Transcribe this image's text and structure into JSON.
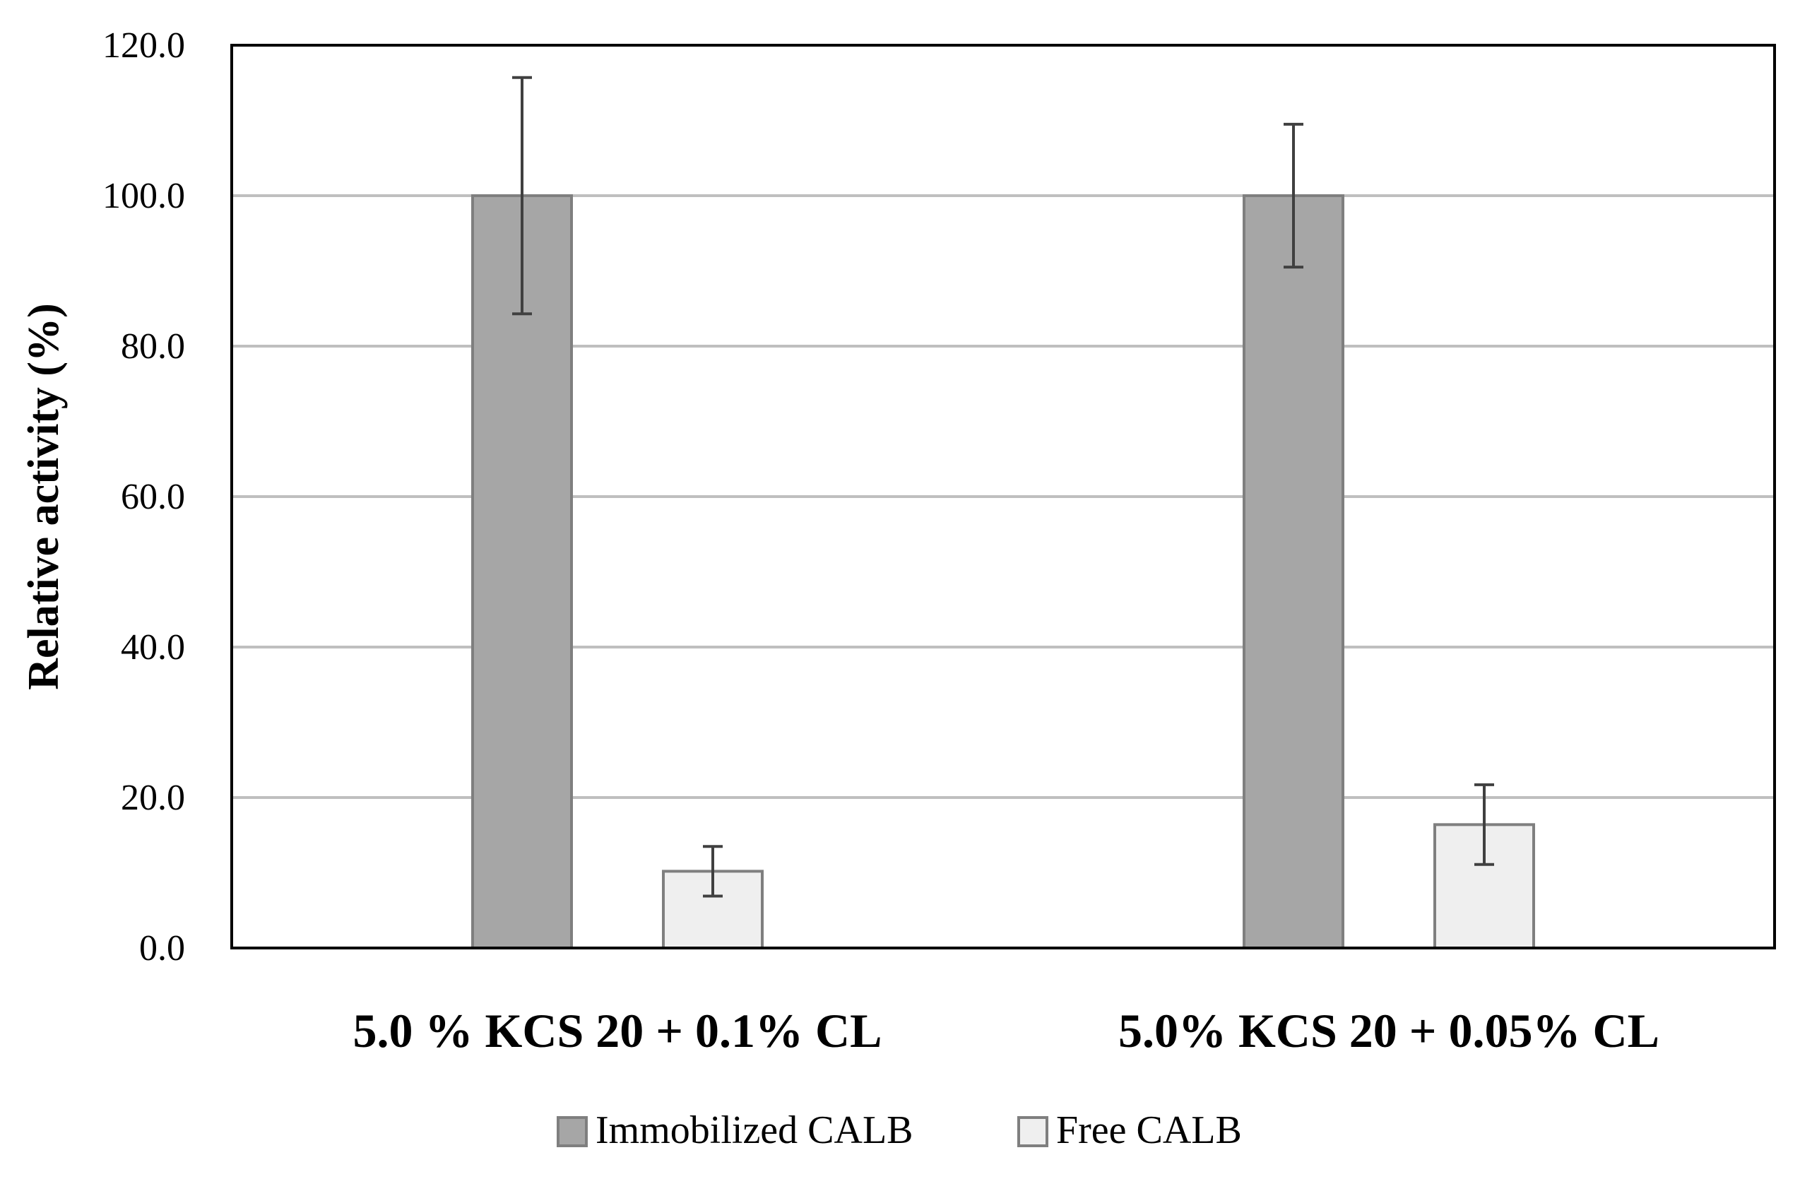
{
  "chart_data": {
    "type": "bar",
    "title": "",
    "xlabel": "",
    "ylabel": "Relative activity (%)",
    "ylim": [
      0,
      120
    ],
    "yticks": [
      0,
      20,
      40,
      60,
      80,
      100,
      120
    ],
    "ytick_labels": [
      "0.0",
      "20.0",
      "40.0",
      "60.0",
      "80.0",
      "100.0",
      "120.0"
    ],
    "grid": true,
    "legend_position": "bottom-center",
    "categories": [
      "5.0 % KCS 20 + 0.1% CL",
      "5.0% KCS 20 + 0.05% CL"
    ],
    "series": [
      {
        "name": "Immobilized CALB",
        "values": [
          100.0,
          100.0
        ],
        "errors": [
          15.7,
          9.5
        ],
        "color": "#a6a6a6",
        "stroke": "#7f7f7f"
      },
      {
        "name": "Free CALB",
        "values": [
          10.2,
          16.4
        ],
        "errors": [
          3.3,
          5.3
        ],
        "color": "#efefef",
        "stroke": "#7f7f7f"
      }
    ],
    "gridline_color": "#bfbfbf",
    "axis_color": "#000000",
    "errorbar_color": "#404040"
  }
}
